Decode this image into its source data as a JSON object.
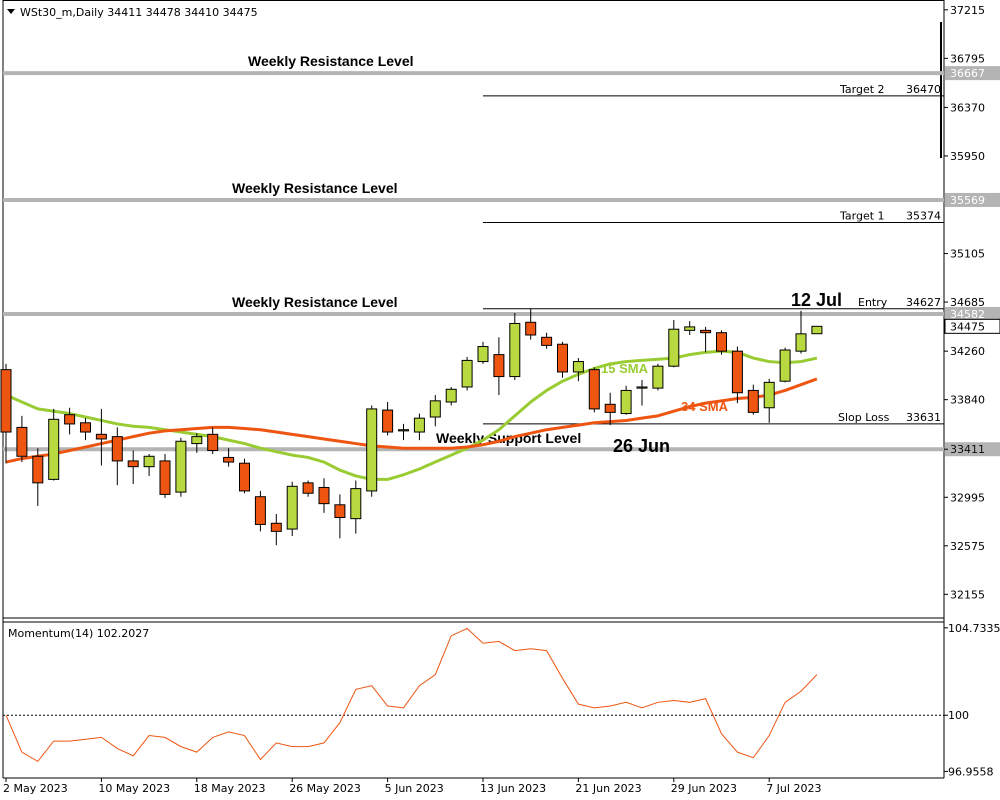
{
  "chart_data": [
    {
      "type": "candlestick",
      "title": "WSt30_m,Daily  34411 34478 34410 34475",
      "y_axis": {
        "ticks": [
          "37215",
          "36795",
          "36370",
          "35950",
          "35105",
          "34685",
          "34260",
          "33840",
          "33411",
          "32995",
          "32575",
          "32155"
        ],
        "ylim": [
          31950,
          37300
        ]
      },
      "x_axis": {
        "tick_labels": [
          "2 May 2023",
          "10 May 2023",
          "18 May 2023",
          "26 May 2023",
          "5 Jun 2023",
          "13 Jun 2023",
          "21 Jun 2023",
          "29 Jun 2023",
          "7 Jul 2023"
        ]
      },
      "candles": [
        {
          "date": "2 May 2023",
          "open": 34100,
          "high": 34150,
          "low": 33290,
          "close": 33560
        },
        {
          "date": "3 May 2023",
          "open": 33600,
          "high": 33700,
          "low": 33300,
          "close": 33350
        },
        {
          "date": "4 May 2023",
          "open": 33350,
          "high": 33420,
          "low": 32920,
          "close": 33120
        },
        {
          "date": "5 May 2023",
          "open": 33150,
          "high": 33760,
          "low": 33140,
          "close": 33670
        },
        {
          "date": "8 May 2023",
          "open": 33710,
          "high": 33770,
          "low": 33540,
          "close": 33630
        },
        {
          "date": "9 May 2023",
          "open": 33640,
          "high": 33680,
          "low": 33490,
          "close": 33560
        },
        {
          "date": "10 May 2023",
          "open": 33540,
          "high": 33760,
          "low": 33270,
          "close": 33500
        },
        {
          "date": "11 May 2023",
          "open": 33520,
          "high": 33600,
          "low": 33100,
          "close": 33310
        },
        {
          "date": "12 May 2023",
          "open": 33310,
          "high": 33400,
          "low": 33110,
          "close": 33260
        },
        {
          "date": "15 May 2023",
          "open": 33260,
          "high": 33370,
          "low": 33180,
          "close": 33350
        },
        {
          "date": "16 May 2023",
          "open": 33310,
          "high": 33370,
          "low": 32990,
          "close": 33020
        },
        {
          "date": "17 May 2023",
          "open": 33040,
          "high": 33510,
          "low": 33000,
          "close": 33480
        },
        {
          "date": "18 May 2023",
          "open": 33460,
          "high": 33550,
          "low": 33380,
          "close": 33520
        },
        {
          "date": "19 May 2023",
          "open": 33540,
          "high": 33600,
          "low": 33370,
          "close": 33400
        },
        {
          "date": "22 May 2023",
          "open": 33340,
          "high": 33420,
          "low": 33260,
          "close": 33300
        },
        {
          "date": "23 May 2023",
          "open": 33290,
          "high": 33330,
          "low": 33030,
          "close": 33050
        },
        {
          "date": "24 May 2023",
          "open": 33000,
          "high": 33050,
          "low": 32700,
          "close": 32760
        },
        {
          "date": "25 May 2023",
          "open": 32770,
          "high": 32850,
          "low": 32580,
          "close": 32700
        },
        {
          "date": "26 May 2023",
          "open": 32720,
          "high": 33130,
          "low": 32660,
          "close": 33090
        },
        {
          "date": "29 May 2023",
          "open": 33120,
          "high": 33140,
          "low": 33000,
          "close": 33030
        },
        {
          "date": "30 May 2023",
          "open": 33080,
          "high": 33160,
          "low": 32860,
          "close": 32940
        },
        {
          "date": "31 May 2023",
          "open": 32930,
          "high": 33020,
          "low": 32640,
          "close": 32820
        },
        {
          "date": "1 Jun 2023",
          "open": 32810,
          "high": 33140,
          "low": 32680,
          "close": 33070
        },
        {
          "date": "2 Jun 2023",
          "open": 33050,
          "high": 33790,
          "low": 33000,
          "close": 33760
        },
        {
          "date": "5 Jun 2023",
          "open": 33750,
          "high": 33820,
          "low": 33530,
          "close": 33560
        },
        {
          "date": "6 Jun 2023",
          "open": 33570,
          "high": 33630,
          "low": 33490,
          "close": 33580
        },
        {
          "date": "7 Jun 2023",
          "open": 33560,
          "high": 33720,
          "low": 33490,
          "close": 33680
        },
        {
          "date": "8 Jun 2023",
          "open": 33690,
          "high": 33880,
          "low": 33610,
          "close": 33830
        },
        {
          "date": "9 Jun 2023",
          "open": 33820,
          "high": 33950,
          "low": 33790,
          "close": 33930
        },
        {
          "date": "12 Jun 2023",
          "open": 33950,
          "high": 34210,
          "low": 33920,
          "close": 34180
        },
        {
          "date": "13 Jun 2023",
          "open": 34170,
          "high": 34340,
          "low": 34150,
          "close": 34300
        },
        {
          "date": "14 Jun 2023",
          "open": 34230,
          "high": 34380,
          "low": 33880,
          "close": 34040
        },
        {
          "date": "15 Jun 2023",
          "open": 34040,
          "high": 34590,
          "low": 34010,
          "close": 34500
        },
        {
          "date": "16 Jun 2023",
          "open": 34510,
          "high": 34630,
          "low": 34360,
          "close": 34400
        },
        {
          "date": "20 Jun 2023",
          "open": 34380,
          "high": 34420,
          "low": 34280,
          "close": 34310
        },
        {
          "date": "21 Jun 2023",
          "open": 34320,
          "high": 34340,
          "low": 34030,
          "close": 34080
        },
        {
          "date": "22 Jun 2023",
          "open": 34080,
          "high": 34200,
          "low": 34000,
          "close": 34170
        },
        {
          "date": "23 Jun 2023",
          "open": 34100,
          "high": 34120,
          "low": 33730,
          "close": 33760
        },
        {
          "date": "26 Jun 2023",
          "open": 33800,
          "high": 33900,
          "low": 33620,
          "close": 33730
        },
        {
          "date": "27 Jun 2023",
          "open": 33720,
          "high": 33960,
          "low": 33710,
          "close": 33920
        },
        {
          "date": "28 Jun 2023",
          "open": 33940,
          "high": 34010,
          "low": 33790,
          "close": 33950
        },
        {
          "date": "29 Jun 2023",
          "open": 33940,
          "high": 34150,
          "low": 33920,
          "close": 34130
        },
        {
          "date": "30 Jun 2023",
          "open": 34130,
          "high": 34530,
          "low": 34120,
          "close": 34450
        },
        {
          "date": "3 Jul 2023",
          "open": 34440,
          "high": 34520,
          "low": 34400,
          "close": 34470
        },
        {
          "date": "5 Jul 2023",
          "open": 34440,
          "high": 34470,
          "low": 34250,
          "close": 34420
        },
        {
          "date": "6 Jul 2023",
          "open": 34420,
          "high": 34440,
          "low": 34230,
          "close": 34260
        },
        {
          "date": "7 Jul 2023",
          "open": 34260,
          "high": 34300,
          "low": 33810,
          "close": 33900
        },
        {
          "date": "10 Jul 2023",
          "open": 33920,
          "high": 33970,
          "low": 33710,
          "close": 33730
        },
        {
          "date": "11 Jul 2023",
          "open": 33770,
          "high": 34020,
          "low": 33640,
          "close": 33990
        },
        {
          "date": "12 Jul 2023",
          "open": 34000,
          "high": 34290,
          "low": 33990,
          "close": 34270
        },
        {
          "date": "13 Jul 2023",
          "open": 34260,
          "high": 34610,
          "low": 34240,
          "close": 34410
        },
        {
          "date": "14 Jul 2023",
          "open": 34411,
          "high": 34478,
          "low": 34410,
          "close": 34475
        }
      ],
      "series": [
        {
          "name": "15 SMA",
          "color": "#99cc33",
          "values": [
            33880,
            33820,
            33760,
            33740,
            33720,
            33690,
            33660,
            33630,
            33610,
            33600,
            33580,
            33560,
            33540,
            33520,
            33490,
            33460,
            33420,
            33390,
            33360,
            33340,
            33300,
            33230,
            33180,
            33150,
            33150,
            33190,
            33240,
            33300,
            33360,
            33420,
            33490,
            33580,
            33700,
            33820,
            33920,
            34000,
            34060,
            34110,
            34150,
            34170,
            34180,
            34190,
            34200,
            34230,
            34250,
            34260,
            34250,
            34200,
            34170,
            34160,
            34170,
            34200
          ]
        },
        {
          "name": "34 SMA",
          "color": "#ee5511",
          "values": [
            33300,
            33330,
            33350,
            33370,
            33400,
            33430,
            33460,
            33490,
            33520,
            33550,
            33570,
            33580,
            33590,
            33600,
            33600,
            33590,
            33580,
            33560,
            33540,
            33520,
            33500,
            33480,
            33460,
            33440,
            33430,
            33420,
            33420,
            33420,
            33420,
            33430,
            33450,
            33480,
            33520,
            33550,
            33580,
            33600,
            33620,
            33640,
            33650,
            33660,
            33680,
            33700,
            33740,
            33780,
            33810,
            33830,
            33850,
            33860,
            33880,
            33920,
            33970,
            34020
          ]
        }
      ],
      "levels": [
        {
          "label": "Weekly Resistance Level",
          "price": 36667,
          "price_label": "36667"
        },
        {
          "label": "Weekly Resistance Level",
          "price": 35569,
          "price_label": "35569"
        },
        {
          "label": "Weekly Resistance Level",
          "price": 34582,
          "price_label": "34582"
        },
        {
          "label": "Weekly Support Level",
          "price": 33411,
          "price_label": "33411"
        }
      ],
      "trade_lines": [
        {
          "label": "Target 2",
          "value": "36470",
          "price": 36470
        },
        {
          "label": "Target 1",
          "value": "35374",
          "price": 35374
        },
        {
          "label": "Entry",
          "value": "34627",
          "price": 34627
        },
        {
          "label": "Slop Loss",
          "value": "33631",
          "price": 33631
        }
      ],
      "current_price_label": "34475",
      "annotations": [
        "12 Jul",
        "26 Jun"
      ]
    },
    {
      "type": "line",
      "title": "Momentum(14) 102.2027",
      "y_axis": {
        "ticks": [
          "104.7335",
          "100",
          "96.9558"
        ],
        "ylim": [
          96.6,
          105.05
        ],
        "reference_line": 100
      },
      "series": [
        {
          "name": "Momentum(14)",
          "color": "#ee5511",
          "values": [
            100.0,
            98.0,
            97.5,
            98.6,
            98.6,
            98.7,
            98.8,
            98.2,
            97.8,
            98.9,
            98.8,
            98.3,
            98.0,
            98.8,
            99.1,
            98.9,
            97.6,
            98.5,
            98.3,
            98.3,
            98.5,
            99.6,
            101.4,
            101.6,
            100.5,
            100.4,
            101.6,
            102.2,
            104.3,
            104.7,
            103.9,
            104.0,
            103.5,
            103.6,
            103.5,
            102.0,
            100.6,
            100.4,
            100.5,
            100.7,
            100.4,
            100.7,
            100.8,
            100.7,
            100.9,
            99.0,
            98.0,
            97.7,
            98.9,
            100.7,
            101.3,
            102.2
          ]
        }
      ]
    }
  ]
}
